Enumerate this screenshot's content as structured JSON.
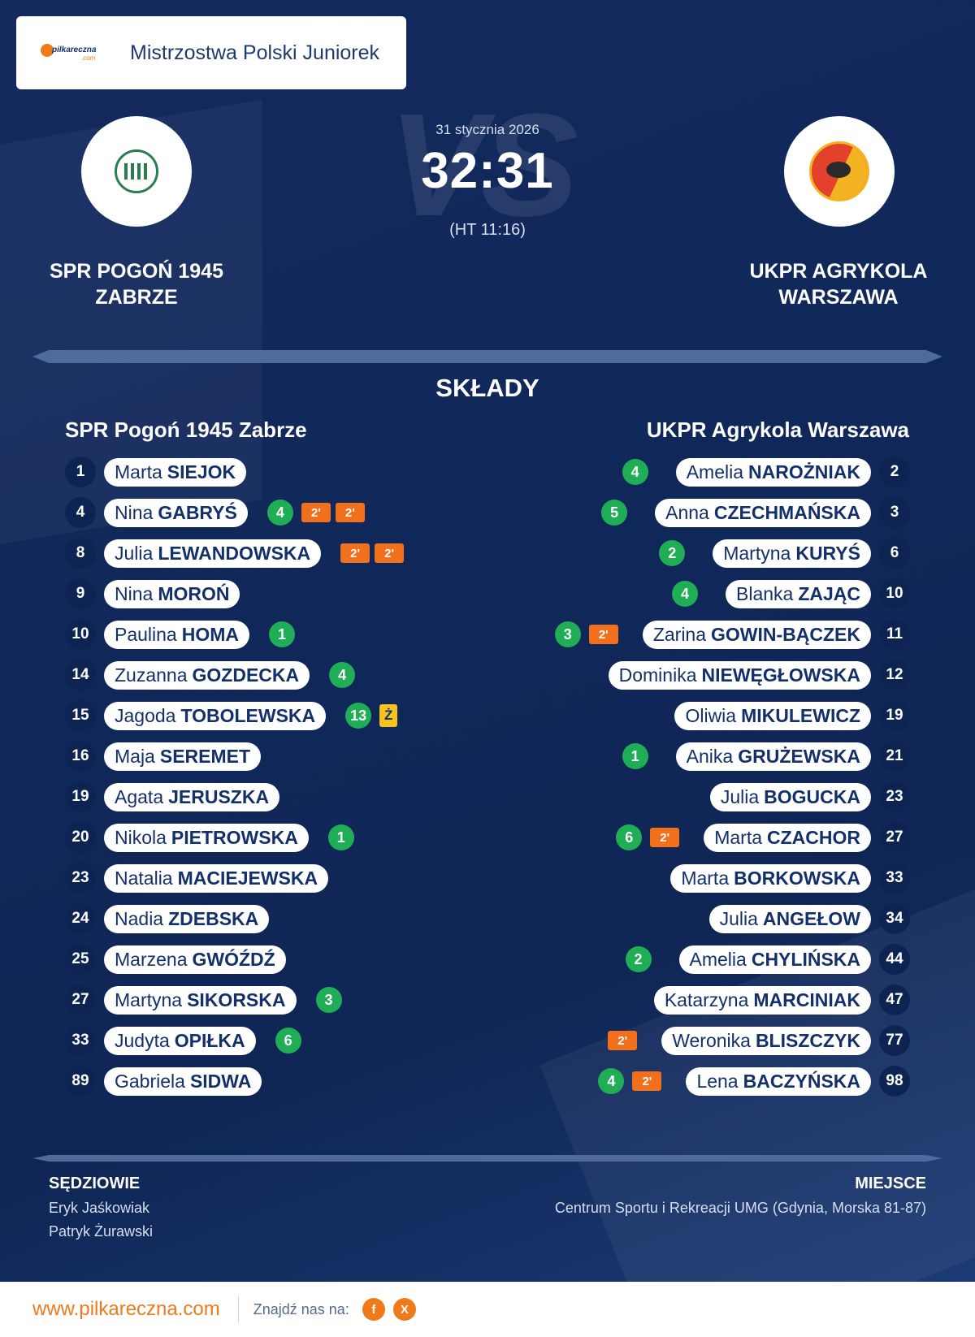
{
  "header": {
    "logo_text": "pilkareczna",
    "logo_sub": ".com",
    "competition": "Mistrzostwa Polski Juniorek"
  },
  "match": {
    "date": "31 stycznia 2026",
    "score": "32:31",
    "halftime": "(HT 11:16)",
    "vs_text": "VS",
    "home": {
      "name_line1": "SPR POGOŃ 1945",
      "name_line2": "ZABRZE",
      "crest": "pogon-crest-icon"
    },
    "away": {
      "name_line1": "UKPR AGRYKOLA",
      "name_line2": "WARSZAWA",
      "crest": "agrykola-crest-icon"
    }
  },
  "lineups": {
    "title": "SKŁADY",
    "home": {
      "title": "SPR Pogoń 1945 Zabrze",
      "players": [
        {
          "number": "1",
          "first": "Marta",
          "last": "SIEJOK",
          "goals": "",
          "susp": [],
          "yellow": ""
        },
        {
          "number": "4",
          "first": "Nina",
          "last": "GABRYŚ",
          "goals": "4",
          "susp": [
            "2'",
            "2'"
          ],
          "yellow": ""
        },
        {
          "number": "8",
          "first": "Julia",
          "last": "LEWANDOWSKA",
          "goals": "",
          "susp": [
            "2'",
            "2'"
          ],
          "yellow": ""
        },
        {
          "number": "9",
          "first": "Nina",
          "last": "MOROŃ",
          "goals": "",
          "susp": [],
          "yellow": ""
        },
        {
          "number": "10",
          "first": "Paulina",
          "last": "HOMA",
          "goals": "1",
          "susp": [],
          "yellow": ""
        },
        {
          "number": "14",
          "first": "Zuzanna",
          "last": "GOZDECKA",
          "goals": "4",
          "susp": [],
          "yellow": ""
        },
        {
          "number": "15",
          "first": "Jagoda",
          "last": "TOBOLEWSKA",
          "goals": "13",
          "susp": [],
          "yellow": "Ż"
        },
        {
          "number": "16",
          "first": "Maja",
          "last": "SEREMET",
          "goals": "",
          "susp": [],
          "yellow": ""
        },
        {
          "number": "19",
          "first": "Agata",
          "last": "JERUSZKA",
          "goals": "",
          "susp": [],
          "yellow": ""
        },
        {
          "number": "20",
          "first": "Nikola",
          "last": "PIETROWSKA",
          "goals": "1",
          "susp": [],
          "yellow": ""
        },
        {
          "number": "23",
          "first": "Natalia",
          "last": "MACIEJEWSKA",
          "goals": "",
          "susp": [],
          "yellow": ""
        },
        {
          "number": "24",
          "first": "Nadia",
          "last": "ZDEBSKA",
          "goals": "",
          "susp": [],
          "yellow": ""
        },
        {
          "number": "25",
          "first": "Marzena",
          "last": "GWÓŹDŹ",
          "goals": "",
          "susp": [],
          "yellow": ""
        },
        {
          "number": "27",
          "first": "Martyna",
          "last": "SIKORSKA",
          "goals": "3",
          "susp": [],
          "yellow": ""
        },
        {
          "number": "33",
          "first": "Judyta",
          "last": "OPIŁKA",
          "goals": "6",
          "susp": [],
          "yellow": ""
        },
        {
          "number": "89",
          "first": "Gabriela",
          "last": "SIDWA",
          "goals": "",
          "susp": [],
          "yellow": ""
        }
      ]
    },
    "away": {
      "title": "UKPR Agrykola Warszawa",
      "players": [
        {
          "number": "2",
          "first": "Amelia",
          "last": "NAROŻNIAK",
          "goals": "4",
          "susp": [],
          "yellow": ""
        },
        {
          "number": "3",
          "first": "Anna",
          "last": "CZECHMAŃSKA",
          "goals": "5",
          "susp": [],
          "yellow": ""
        },
        {
          "number": "6",
          "first": "Martyna",
          "last": "KURYŚ",
          "goals": "2",
          "susp": [],
          "yellow": ""
        },
        {
          "number": "10",
          "first": "Blanka",
          "last": "ZAJĄC",
          "goals": "4",
          "susp": [],
          "yellow": ""
        },
        {
          "number": "11",
          "first": "Zarina",
          "last": "GOWIN-BĄCZEK",
          "goals": "3",
          "susp": [
            "2'"
          ],
          "yellow": ""
        },
        {
          "number": "12",
          "first": "Dominika",
          "last": "NIEWĘGŁOWSKA",
          "goals": "",
          "susp": [],
          "yellow": ""
        },
        {
          "number": "19",
          "first": "Oliwia",
          "last": "MIKULEWICZ",
          "goals": "",
          "susp": [],
          "yellow": ""
        },
        {
          "number": "21",
          "first": "Anika",
          "last": "GRUŻEWSKA",
          "goals": "1",
          "susp": [],
          "yellow": ""
        },
        {
          "number": "23",
          "first": "Julia",
          "last": "BOGUCKA",
          "goals": "",
          "susp": [],
          "yellow": ""
        },
        {
          "number": "27",
          "first": "Marta",
          "last": "CZACHOR",
          "goals": "6",
          "susp": [
            "2'"
          ],
          "yellow": ""
        },
        {
          "number": "33",
          "first": "Marta",
          "last": "BORKOWSKA",
          "goals": "",
          "susp": [],
          "yellow": ""
        },
        {
          "number": "34",
          "first": "Julia",
          "last": "ANGEŁOW",
          "goals": "",
          "susp": [],
          "yellow": ""
        },
        {
          "number": "44",
          "first": "Amelia",
          "last": "CHYLIŃSKA",
          "goals": "2",
          "susp": [],
          "yellow": ""
        },
        {
          "number": "47",
          "first": "Katarzyna",
          "last": "MARCINIAK",
          "goals": "",
          "susp": [],
          "yellow": ""
        },
        {
          "number": "77",
          "first": "Weronika",
          "last": "BLISZCZYK",
          "goals": "",
          "susp": [
            "2'"
          ],
          "yellow": ""
        },
        {
          "number": "98",
          "first": "Lena",
          "last": "BACZYŃSKA",
          "goals": "4",
          "susp": [
            "2'"
          ],
          "yellow": ""
        }
      ]
    }
  },
  "officials": {
    "title": "SĘDZIOWIE",
    "names": [
      "Eryk Jaśkowiak",
      "Patryk Żurawski"
    ]
  },
  "venue": {
    "title": "MIEJSCE",
    "text": "Centrum Sportu i Rekreacji UMG (Gdynia, Morska 81-87)"
  },
  "footer": {
    "site": "www.pilkareczna.com",
    "find_us": "Znajdź nas na:",
    "social": [
      "f",
      "X"
    ]
  },
  "colors": {
    "accent": "#f07a1a",
    "goal": "#1fae55",
    "suspension": "#f26f1b",
    "yellow_card": "#f6c21b",
    "navy": "#13306b"
  }
}
